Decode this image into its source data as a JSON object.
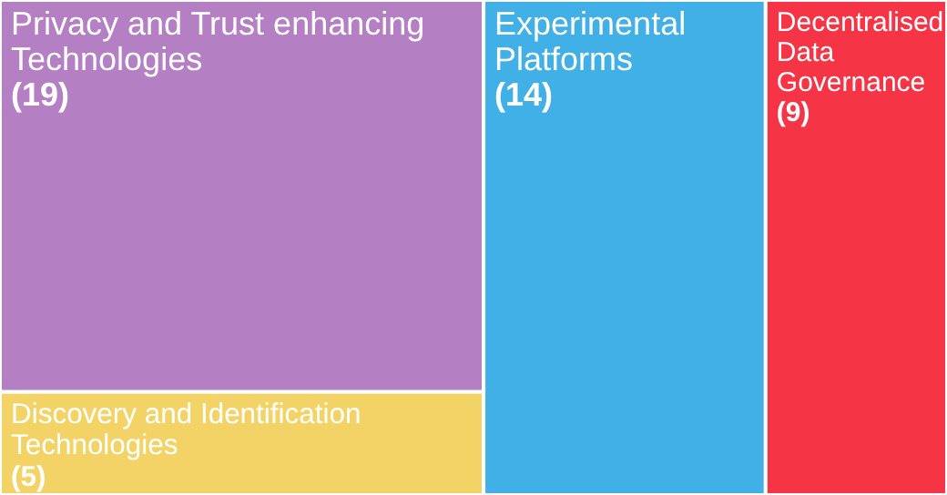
{
  "chart_data": {
    "type": "other",
    "categories": [
      "Privacy and Trust enhancing Technologies",
      "Discovery and Identification Technologies",
      "Experimental Platforms",
      "Decentralised Data Governance"
    ],
    "values": [
      19,
      5,
      14,
      9
    ],
    "value_labels": [
      "(19)",
      "(5)",
      "(14)",
      "(9)"
    ],
    "colors": [
      "#b57fc4",
      "#f3d365",
      "#41b0e6",
      "#f53446"
    ]
  }
}
